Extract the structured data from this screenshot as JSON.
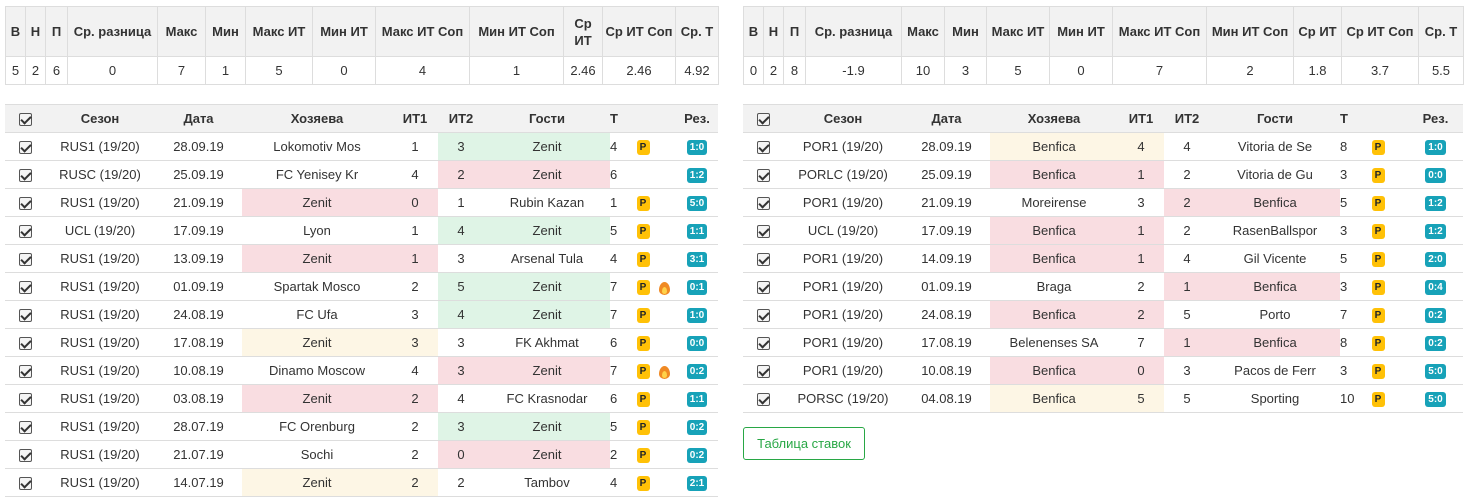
{
  "stats_headers": [
    "В",
    "Н",
    "П",
    "Ср. разница",
    "Макс",
    "Мин",
    "Макс ИТ",
    "Мин ИТ",
    "Макс ИТ Соп",
    "Мин ИТ Соп",
    "Ср ИТ",
    "Ср ИТ Соп",
    "Ср. Т"
  ],
  "stats_left": [
    "5",
    "2",
    "6",
    "0",
    "7",
    "1",
    "5",
    "0",
    "4",
    "1",
    "2.46",
    "2.46",
    "4.92"
  ],
  "stats_right": [
    "0",
    "2",
    "8",
    "-1.9",
    "10",
    "3",
    "5",
    "0",
    "7",
    "2",
    "1.8",
    "3.7",
    "5.5"
  ],
  "games_headers": [
    "Сезон",
    "Дата",
    "Хозяева",
    "ИТ1",
    "ИТ2",
    "Гости",
    "Т",
    "Рез."
  ],
  "p_label": "P",
  "left_games": [
    {
      "season": "RUS1 (19/20)",
      "date": "28.09.19",
      "home": "Lokomotiv Mos",
      "it1": "1",
      "it2": "3",
      "away": "Zenit",
      "t": "4",
      "p": true,
      "fire": false,
      "res": "1:0",
      "hl": "away",
      "hc": "green"
    },
    {
      "season": "RUSC (19/20)",
      "date": "25.09.19",
      "home": "FC Yenisey Kr",
      "it1": "4",
      "it2": "2",
      "away": "Zenit",
      "t": "6",
      "p": false,
      "fire": false,
      "res": "1:2",
      "hl": "away",
      "hc": "red"
    },
    {
      "season": "RUS1 (19/20)",
      "date": "21.09.19",
      "home": "Zenit",
      "it1": "0",
      "it2": "1",
      "away": "Rubin Kazan",
      "t": "1",
      "p": true,
      "fire": false,
      "res": "5:0",
      "hl": "home",
      "hc": "red"
    },
    {
      "season": "UCL (19/20)",
      "date": "17.09.19",
      "home": "Lyon",
      "it1": "1",
      "it2": "4",
      "away": "Zenit",
      "t": "5",
      "p": true,
      "fire": false,
      "res": "1:1",
      "hl": "away",
      "hc": "green"
    },
    {
      "season": "RUS1 (19/20)",
      "date": "13.09.19",
      "home": "Zenit",
      "it1": "1",
      "it2": "3",
      "away": "Arsenal Tula",
      "t": "4",
      "p": true,
      "fire": false,
      "res": "3:1",
      "hl": "home",
      "hc": "red"
    },
    {
      "season": "RUS1 (19/20)",
      "date": "01.09.19",
      "home": "Spartak Mosco",
      "it1": "2",
      "it2": "5",
      "away": "Zenit",
      "t": "7",
      "p": true,
      "fire": true,
      "res": "0:1",
      "hl": "away",
      "hc": "green"
    },
    {
      "season": "RUS1 (19/20)",
      "date": "24.08.19",
      "home": "FC Ufa",
      "it1": "3",
      "it2": "4",
      "away": "Zenit",
      "t": "7",
      "p": true,
      "fire": false,
      "res": "1:0",
      "hl": "away",
      "hc": "green"
    },
    {
      "season": "RUS1 (19/20)",
      "date": "17.08.19",
      "home": "Zenit",
      "it1": "3",
      "it2": "3",
      "away": "FK Akhmat",
      "t": "6",
      "p": true,
      "fire": false,
      "res": "0:0",
      "hl": "home",
      "hc": "yellow"
    },
    {
      "season": "RUS1 (19/20)",
      "date": "10.08.19",
      "home": "Dinamo Moscow",
      "it1": "4",
      "it2": "3",
      "away": "Zenit",
      "t": "7",
      "p": true,
      "fire": true,
      "res": "0:2",
      "hl": "away",
      "hc": "red"
    },
    {
      "season": "RUS1 (19/20)",
      "date": "03.08.19",
      "home": "Zenit",
      "it1": "2",
      "it2": "4",
      "away": "FC Krasnodar",
      "t": "6",
      "p": true,
      "fire": false,
      "res": "1:1",
      "hl": "home",
      "hc": "red"
    },
    {
      "season": "RUS1 (19/20)",
      "date": "28.07.19",
      "home": "FC Orenburg",
      "it1": "2",
      "it2": "3",
      "away": "Zenit",
      "t": "5",
      "p": true,
      "fire": false,
      "res": "0:2",
      "hl": "away",
      "hc": "green"
    },
    {
      "season": "RUS1 (19/20)",
      "date": "21.07.19",
      "home": "Sochi",
      "it1": "2",
      "it2": "0",
      "away": "Zenit",
      "t": "2",
      "p": true,
      "fire": false,
      "res": "0:2",
      "hl": "away",
      "hc": "red"
    },
    {
      "season": "RUS1 (19/20)",
      "date": "14.07.19",
      "home": "Zenit",
      "it1": "2",
      "it2": "2",
      "away": "Tambov",
      "t": "4",
      "p": true,
      "fire": false,
      "res": "2:1",
      "hl": "home",
      "hc": "yellow"
    }
  ],
  "right_games": [
    {
      "season": "POR1 (19/20)",
      "date": "28.09.19",
      "home": "Benfica",
      "it1": "4",
      "it2": "4",
      "away": "Vitoria de Se",
      "t": "8",
      "p": true,
      "fire": false,
      "res": "1:0",
      "hl": "home",
      "hc": "yellow"
    },
    {
      "season": "PORLC (19/20)",
      "date": "25.09.19",
      "home": "Benfica",
      "it1": "1",
      "it2": "2",
      "away": "Vitoria de Gu",
      "t": "3",
      "p": true,
      "fire": false,
      "res": "0:0",
      "hl": "home",
      "hc": "red"
    },
    {
      "season": "POR1 (19/20)",
      "date": "21.09.19",
      "home": "Moreirense",
      "it1": "3",
      "it2": "2",
      "away": "Benfica",
      "t": "5",
      "p": true,
      "fire": false,
      "res": "1:2",
      "hl": "away",
      "hc": "red"
    },
    {
      "season": "UCL (19/20)",
      "date": "17.09.19",
      "home": "Benfica",
      "it1": "1",
      "it2": "2",
      "away": "RasenBallspor",
      "t": "3",
      "p": true,
      "fire": false,
      "res": "1:2",
      "hl": "home",
      "hc": "red"
    },
    {
      "season": "POR1 (19/20)",
      "date": "14.09.19",
      "home": "Benfica",
      "it1": "1",
      "it2": "4",
      "away": "Gil Vicente",
      "t": "5",
      "p": true,
      "fire": false,
      "res": "2:0",
      "hl": "home",
      "hc": "red"
    },
    {
      "season": "POR1 (19/20)",
      "date": "01.09.19",
      "home": "Braga",
      "it1": "2",
      "it2": "1",
      "away": "Benfica",
      "t": "3",
      "p": true,
      "fire": false,
      "res": "0:4",
      "hl": "away",
      "hc": "red"
    },
    {
      "season": "POR1 (19/20)",
      "date": "24.08.19",
      "home": "Benfica",
      "it1": "2",
      "it2": "5",
      "away": "Porto",
      "t": "7",
      "p": true,
      "fire": false,
      "res": "0:2",
      "hl": "home",
      "hc": "red"
    },
    {
      "season": "POR1 (19/20)",
      "date": "17.08.19",
      "home": "Belenenses SA",
      "it1": "7",
      "it2": "1",
      "away": "Benfica",
      "t": "8",
      "p": true,
      "fire": false,
      "res": "0:2",
      "hl": "away",
      "hc": "red"
    },
    {
      "season": "POR1 (19/20)",
      "date": "10.08.19",
      "home": "Benfica",
      "it1": "0",
      "it2": "3",
      "away": "Pacos de Ferr",
      "t": "3",
      "p": true,
      "fire": false,
      "res": "5:0",
      "hl": "home",
      "hc": "red"
    },
    {
      "season": "PORSC (19/20)",
      "date": "04.08.19",
      "home": "Benfica",
      "it1": "5",
      "it2": "5",
      "away": "Sporting",
      "t": "10",
      "p": true,
      "fire": false,
      "res": "5:0",
      "hl": "home",
      "hc": "yellow"
    }
  ],
  "bets_button": "Таблица ставок",
  "colors": {
    "red": "#f9dde1",
    "green": "#dff4e6",
    "yellow": "#fdf6e5",
    "p_badge": "#ffc107",
    "result_badge": "#17a2b8",
    "button_green": "#28a745"
  },
  "icons": {
    "checkbox": "checkbox-checked-icon",
    "hot": "fire-icon"
  }
}
